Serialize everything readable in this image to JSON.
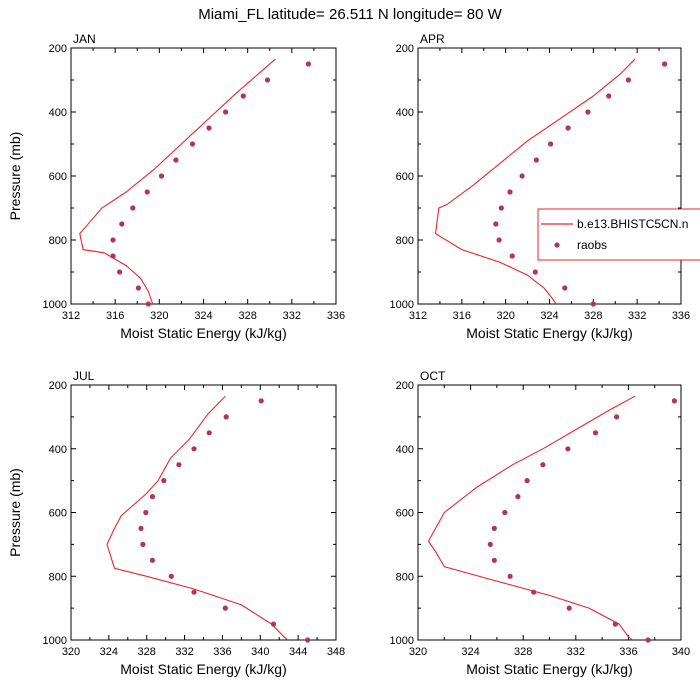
{
  "title": "Miami_FL  latitude= 26.511 N longitude= 80 W",
  "legend": {
    "line_label": "b.e13.BHISTC5CN.n",
    "dots_label": "raobs"
  },
  "colors": {
    "model_line": "#e8262a",
    "obs_dots": "#b5325c",
    "axes": "#000000",
    "legend_border": "#e8262a"
  },
  "chart_data": [
    {
      "type": "line+scatter",
      "panel": "JAN",
      "ylabel": "Pressure (mb)",
      "xlabel": "Moist Static Energy (kJ/kg)",
      "xlim": [
        312,
        336
      ],
      "ylim": [
        1000,
        200
      ],
      "xticks": [
        312,
        316,
        320,
        324,
        328,
        332,
        336
      ],
      "yticks": [
        200,
        400,
        600,
        800,
        1000
      ],
      "series": [
        {
          "name": "b.e13.BHISTC5CN.n",
          "kind": "line",
          "points": [
            [
              330.5,
              235
            ],
            [
              329,
              280
            ],
            [
              327,
              340
            ],
            [
              324.5,
              420
            ],
            [
              322,
              500
            ],
            [
              319.5,
              580
            ],
            [
              317,
              650
            ],
            [
              314.8,
              700
            ],
            [
              313.8,
              740
            ],
            [
              312.8,
              780
            ],
            [
              313.1,
              830
            ],
            [
              315,
              840
            ],
            [
              317,
              880
            ],
            [
              318.3,
              920
            ],
            [
              319,
              960
            ],
            [
              319.4,
              1000
            ]
          ]
        },
        {
          "name": "raobs",
          "kind": "scatter",
          "points": [
            [
              333.5,
              250
            ],
            [
              329.8,
              300
            ],
            [
              327.6,
              350
            ],
            [
              326,
              400
            ],
            [
              324.5,
              450
            ],
            [
              323,
              500
            ],
            [
              321.5,
              550
            ],
            [
              320.2,
              600
            ],
            [
              318.9,
              650
            ],
            [
              317.6,
              700
            ],
            [
              316.6,
              750
            ],
            [
              315.8,
              800
            ],
            [
              315.8,
              850
            ],
            [
              316.4,
              900
            ],
            [
              318.1,
              950
            ],
            [
              319,
              1000
            ]
          ]
        }
      ]
    },
    {
      "type": "line+scatter",
      "panel": "APR",
      "ylabel": "",
      "xlabel": "Moist Static Energy (kJ/kg)",
      "xlim": [
        312,
        336
      ],
      "ylim": [
        1000,
        200
      ],
      "xticks": [
        312,
        316,
        320,
        324,
        328,
        332,
        336
      ],
      "yticks": [
        200,
        400,
        600,
        800,
        1000
      ],
      "series": [
        {
          "name": "b.e13.BHISTC5CN.n",
          "kind": "line",
          "points": [
            [
              331.8,
              235
            ],
            [
              330.5,
              280
            ],
            [
              328,
              350
            ],
            [
              325,
              420
            ],
            [
              322,
              490
            ],
            [
              319.5,
              560
            ],
            [
              317,
              630
            ],
            [
              314.6,
              690
            ],
            [
              313.9,
              700
            ],
            [
              313.6,
              780
            ],
            [
              316,
              830
            ],
            [
              319.5,
              870
            ],
            [
              322,
              910
            ],
            [
              323.5,
              950
            ],
            [
              324.2,
              980
            ],
            [
              324.6,
              1000
            ]
          ]
        },
        {
          "name": "raobs",
          "kind": "scatter",
          "points": [
            [
              334.5,
              250
            ],
            [
              331.2,
              300
            ],
            [
              329.4,
              350
            ],
            [
              327.5,
              400
            ],
            [
              325.7,
              450
            ],
            [
              324.1,
              500
            ],
            [
              322.8,
              550
            ],
            [
              321.5,
              600
            ],
            [
              320.4,
              650
            ],
            [
              319.6,
              700
            ],
            [
              319.1,
              750
            ],
            [
              319.4,
              800
            ],
            [
              320.6,
              850
            ],
            [
              322.7,
              900
            ],
            [
              325.4,
              950
            ],
            [
              328,
              1000
            ]
          ]
        }
      ]
    },
    {
      "type": "line+scatter",
      "panel": "JUL",
      "ylabel": "Pressure (mb)",
      "xlabel": "Moist Static Energy (kJ/kg)",
      "xlim": [
        320,
        348
      ],
      "ylim": [
        1000,
        200
      ],
      "xticks": [
        320,
        324,
        328,
        332,
        336,
        340,
        344,
        348
      ],
      "yticks": [
        200,
        400,
        600,
        800,
        1000
      ],
      "series": [
        {
          "name": "b.e13.BHISTC5CN.n",
          "kind": "line",
          "points": [
            [
              336.3,
              235
            ],
            [
              334.5,
              290
            ],
            [
              332.5,
              370
            ],
            [
              330.5,
              430
            ],
            [
              329.2,
              500
            ],
            [
              328,
              540
            ],
            [
              325.3,
              610
            ],
            [
              324.6,
              650
            ],
            [
              323.8,
              700
            ],
            [
              324.6,
              775
            ],
            [
              328,
              800
            ],
            [
              333,
              840
            ],
            [
              338,
              890
            ],
            [
              341.2,
              950
            ],
            [
              342.5,
              990
            ],
            [
              342.9,
              1000
            ]
          ]
        },
        {
          "name": "raobs",
          "kind": "scatter",
          "points": [
            [
              340.1,
              250
            ],
            [
              336.4,
              300
            ],
            [
              334.6,
              350
            ],
            [
              333,
              400
            ],
            [
              331.4,
              450
            ],
            [
              329.8,
              500
            ],
            [
              328.6,
              550
            ],
            [
              327.9,
              600
            ],
            [
              327.4,
              650
            ],
            [
              327.6,
              700
            ],
            [
              328.6,
              750
            ],
            [
              330.6,
              800
            ],
            [
              333,
              850
            ],
            [
              336.3,
              900
            ],
            [
              341.4,
              950
            ],
            [
              345,
              1000
            ]
          ]
        }
      ]
    },
    {
      "type": "line+scatter",
      "panel": "OCT",
      "ylabel": "",
      "xlabel": "Moist Static Energy (kJ/kg)",
      "xlim": [
        320,
        340
      ],
      "ylim": [
        1000,
        200
      ],
      "xticks": [
        320,
        324,
        328,
        332,
        336,
        340
      ],
      "yticks": [
        200,
        400,
        600,
        800,
        1000
      ],
      "series": [
        {
          "name": "b.e13.BHISTC5CN.n",
          "kind": "line",
          "points": [
            [
              336.5,
              235
            ],
            [
              334.5,
              280
            ],
            [
              332,
              340
            ],
            [
              329.5,
              400
            ],
            [
              327.2,
              450
            ],
            [
              324.5,
              520
            ],
            [
              322,
              600
            ],
            [
              320.8,
              690
            ],
            [
              321.3,
              720
            ],
            [
              322,
              770
            ],
            [
              325.5,
              810
            ],
            [
              330,
              860
            ],
            [
              333,
              900
            ],
            [
              335.3,
              950
            ],
            [
              336,
              990
            ],
            [
              336.3,
              1000
            ]
          ]
        },
        {
          "name": "raobs",
          "kind": "scatter",
          "points": [
            [
              339.5,
              250
            ],
            [
              335.1,
              300
            ],
            [
              333.5,
              350
            ],
            [
              331.4,
              400
            ],
            [
              329.5,
              450
            ],
            [
              328.3,
              500
            ],
            [
              327.6,
              550
            ],
            [
              326.6,
              600
            ],
            [
              325.8,
              650
            ],
            [
              325.5,
              700
            ],
            [
              325.8,
              750
            ],
            [
              327,
              800
            ],
            [
              328.8,
              850
            ],
            [
              331.5,
              900
            ],
            [
              335,
              950
            ],
            [
              337.5,
              1000
            ]
          ]
        }
      ]
    }
  ]
}
